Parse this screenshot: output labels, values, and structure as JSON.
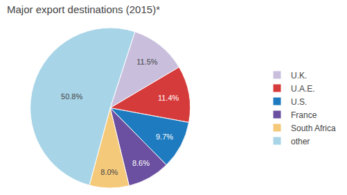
{
  "chart_data": {
    "type": "pie",
    "title": "Major export destinations (2015)*",
    "categories": [
      "U.K.",
      "U.A.E.",
      "U.S.",
      "France",
      "South Africa",
      "other"
    ],
    "values": [
      11.5,
      11.4,
      9.7,
      8.6,
      8.0,
      50.8
    ],
    "value_labels": [
      "11.5%",
      "11.4%",
      "9.7%",
      "8.6%",
      "8.0%",
      "50.8%"
    ],
    "colors": [
      "#c9bfdd",
      "#d63b3b",
      "#1e7bbf",
      "#6b4fa0",
      "#f5c97a",
      "#a8d4e8"
    ],
    "data_labels": true,
    "legend": "right"
  }
}
